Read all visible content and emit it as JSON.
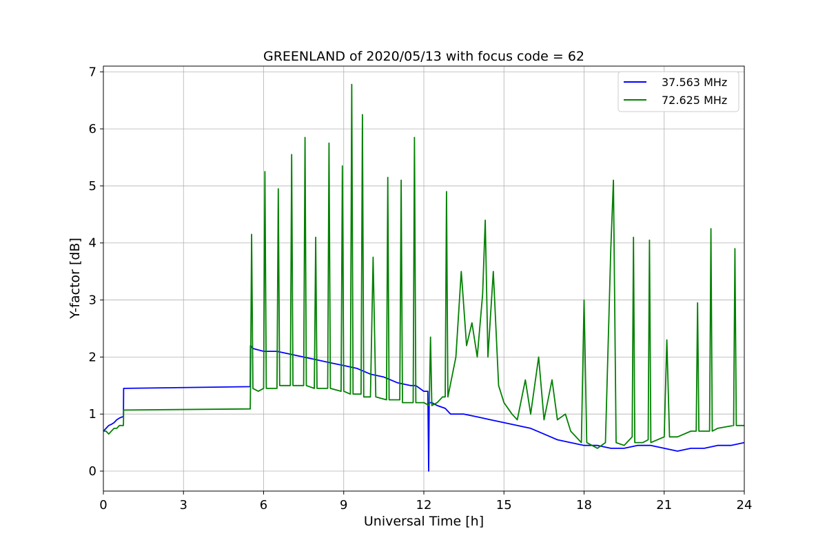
{
  "chart_data": {
    "type": "line",
    "title": "GREENLAND of 2020/05/13 with focus code = 62",
    "xlabel": "Universal Time [h]",
    "ylabel": "Y-factor [dB]",
    "xlim": [
      0,
      24
    ],
    "ylim": [
      -0.35,
      7.1
    ],
    "xticks": [
      0,
      3,
      6,
      9,
      12,
      15,
      18,
      21,
      24
    ],
    "yticks": [
      0,
      1,
      2,
      3,
      4,
      5,
      6,
      7
    ],
    "grid": true,
    "legend_position": "top-right",
    "series": [
      {
        "name": "37.563 MHz",
        "color": "#0000ff",
        "x": [
          0,
          0.1,
          0.2,
          0.3,
          0.4,
          0.5,
          0.6,
          0.7,
          0.75,
          0.76,
          5.5,
          5.51,
          5.6,
          6.0,
          6.5,
          7.0,
          7.5,
          8.0,
          8.5,
          9.0,
          9.5,
          10.0,
          10.5,
          11.0,
          11.5,
          11.7,
          12.0,
          12.15,
          12.18,
          12.2,
          12.3,
          12.5,
          12.8,
          13.0,
          13.5,
          14.0,
          14.5,
          15.0,
          15.5,
          16.0,
          16.5,
          17.0,
          17.5,
          18.0,
          18.5,
          19.0,
          19.5,
          20.0,
          20.5,
          21.0,
          21.5,
          22.0,
          22.5,
          23.0,
          23.5,
          24.0
        ],
        "y": [
          0.7,
          0.75,
          0.8,
          0.82,
          0.85,
          0.9,
          0.93,
          0.95,
          0.95,
          1.45,
          1.48,
          2.2,
          2.15,
          2.1,
          2.1,
          2.05,
          2.0,
          1.95,
          1.9,
          1.85,
          1.8,
          1.7,
          1.65,
          1.55,
          1.5,
          1.5,
          1.4,
          1.4,
          0.0,
          1.2,
          1.2,
          1.15,
          1.1,
          1.0,
          1.0,
          0.95,
          0.9,
          0.85,
          0.8,
          0.75,
          0.65,
          0.55,
          0.5,
          0.45,
          0.45,
          0.4,
          0.4,
          0.45,
          0.45,
          0.4,
          0.35,
          0.4,
          0.4,
          0.45,
          0.45,
          0.5
        ]
      },
      {
        "name": "72.625 MHz",
        "color": "#008000",
        "x": [
          0,
          0.1,
          0.2,
          0.3,
          0.4,
          0.5,
          0.6,
          0.7,
          0.75,
          0.76,
          5.5,
          5.51,
          5.55,
          5.6,
          5.8,
          6.0,
          6.05,
          6.1,
          6.5,
          6.55,
          6.6,
          7.0,
          7.05,
          7.1,
          7.5,
          7.55,
          7.6,
          7.9,
          7.95,
          8.0,
          8.4,
          8.45,
          8.5,
          8.9,
          8.95,
          9.0,
          9.25,
          9.3,
          9.35,
          9.65,
          9.7,
          9.75,
          10.0,
          10.1,
          10.2,
          10.6,
          10.65,
          10.7,
          11.1,
          11.15,
          11.2,
          11.6,
          11.65,
          11.7,
          12.0,
          12.2,
          12.25,
          12.3,
          12.5,
          12.7,
          12.8,
          12.85,
          12.9,
          13.2,
          13.4,
          13.6,
          13.8,
          14.0,
          14.2,
          14.3,
          14.4,
          14.6,
          14.8,
          15.0,
          15.3,
          15.5,
          15.8,
          16.0,
          16.3,
          16.5,
          16.8,
          17.0,
          17.3,
          17.5,
          17.9,
          18.0,
          18.1,
          18.5,
          18.8,
          19.0,
          19.1,
          19.2,
          19.5,
          19.8,
          19.85,
          19.9,
          20.2,
          20.4,
          20.45,
          20.5,
          21.0,
          21.1,
          21.2,
          21.5,
          22.0,
          22.2,
          22.25,
          22.3,
          22.7,
          22.75,
          22.8,
          23.0,
          23.6,
          23.65,
          23.7,
          24.0
        ],
        "y": [
          0.7,
          0.7,
          0.65,
          0.7,
          0.75,
          0.75,
          0.8,
          0.8,
          0.8,
          1.07,
          1.09,
          1.45,
          4.15,
          1.45,
          1.4,
          1.45,
          5.25,
          1.45,
          1.45,
          4.95,
          1.5,
          1.5,
          5.55,
          1.5,
          1.5,
          5.85,
          1.5,
          1.45,
          4.1,
          1.45,
          1.45,
          5.75,
          1.45,
          1.4,
          5.35,
          1.4,
          1.35,
          6.78,
          1.35,
          1.35,
          6.25,
          1.3,
          1.3,
          3.75,
          1.3,
          1.25,
          5.15,
          1.25,
          1.25,
          5.1,
          1.2,
          1.2,
          5.85,
          1.2,
          1.2,
          1.15,
          2.35,
          1.15,
          1.2,
          1.3,
          1.3,
          4.9,
          1.3,
          2.0,
          3.5,
          2.2,
          2.6,
          2.0,
          3.1,
          4.4,
          2.0,
          3.5,
          1.5,
          1.2,
          1.0,
          0.9,
          1.6,
          1.0,
          2.0,
          0.9,
          1.6,
          0.9,
          1.0,
          0.7,
          0.5,
          3.0,
          0.5,
          0.4,
          0.5,
          3.9,
          5.1,
          0.5,
          0.45,
          0.6,
          4.1,
          0.5,
          0.5,
          0.55,
          4.05,
          0.5,
          0.6,
          2.3,
          0.6,
          0.6,
          0.7,
          0.7,
          2.95,
          0.7,
          0.7,
          4.25,
          0.7,
          0.75,
          0.8,
          3.9,
          0.8,
          0.8
        ]
      }
    ]
  }
}
